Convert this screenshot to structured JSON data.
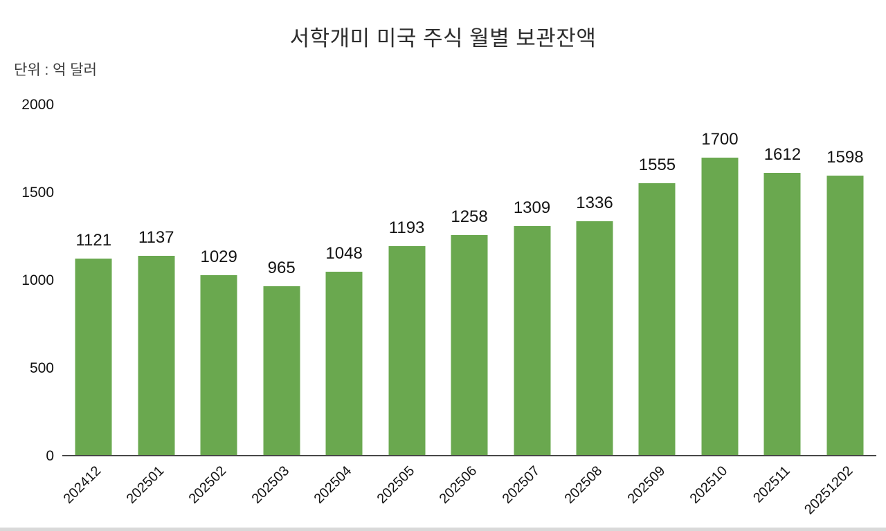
{
  "page": {
    "background": "#ffffff"
  },
  "chart_data": {
    "type": "bar",
    "title": "서학개미 미국 주식 월별 보관잔액",
    "unit_label": "단위 : 억 달러",
    "categories": [
      "202412",
      "202501",
      "202502",
      "202503",
      "202504",
      "202505",
      "202506",
      "202507",
      "202508",
      "202509",
      "202510",
      "202511",
      "20251202"
    ],
    "values": [
      1121,
      1137,
      1029,
      965,
      1048,
      1193,
      1258,
      1309,
      1336,
      1555,
      1700,
      1612,
      1598
    ],
    "ylim": [
      0,
      2000
    ],
    "yticks": [
      0,
      500,
      1000,
      1500,
      2000
    ],
    "bar_color": "#6aa84f",
    "axis_line_color": "#474747",
    "grid": false,
    "legend": false,
    "value_labels": true,
    "x_label_rotation_deg": -45
  }
}
